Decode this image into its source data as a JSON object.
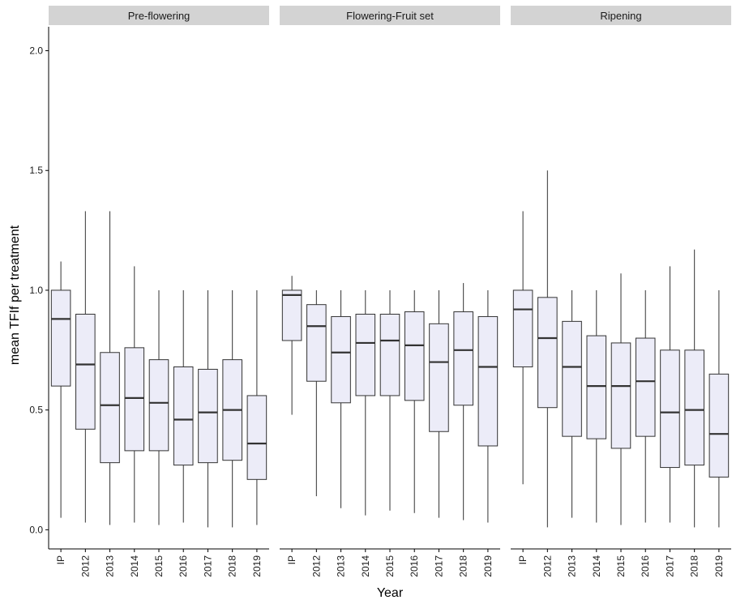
{
  "chart_data": {
    "type": "boxplot",
    "xlabel": "Year",
    "ylabel": "mean TFIf per treatment",
    "ylim": [
      -0.08,
      2.1
    ],
    "yticks": [
      0.0,
      0.5,
      1.0,
      1.5,
      2.0
    ],
    "ytick_labels": [
      "0.0",
      "0.5",
      "1.0",
      "1.5",
      "2.0"
    ],
    "categories": [
      "IP",
      "2012",
      "2013",
      "2014",
      "2015",
      "2016",
      "2017",
      "2018",
      "2019"
    ],
    "grid": false,
    "box_color": "#ececf8",
    "panels": [
      {
        "name": "Pre-flowering",
        "boxes": [
          {
            "category": "IP",
            "min": 0.05,
            "q1": 0.6,
            "median": 0.88,
            "q3": 1.0,
            "max": 1.12
          },
          {
            "category": "2012",
            "min": 0.03,
            "q1": 0.42,
            "median": 0.69,
            "q3": 0.9,
            "max": 1.33
          },
          {
            "category": "2013",
            "min": 0.02,
            "q1": 0.28,
            "median": 0.52,
            "q3": 0.74,
            "max": 1.33
          },
          {
            "category": "2014",
            "min": 0.03,
            "q1": 0.33,
            "median": 0.55,
            "q3": 0.76,
            "max": 1.1
          },
          {
            "category": "2015",
            "min": 0.02,
            "q1": 0.33,
            "median": 0.53,
            "q3": 0.71,
            "max": 1.0
          },
          {
            "category": "2016",
            "min": 0.03,
            "q1": 0.27,
            "median": 0.46,
            "q3": 0.68,
            "max": 1.0
          },
          {
            "category": "2017",
            "min": 0.01,
            "q1": 0.28,
            "median": 0.49,
            "q3": 0.67,
            "max": 1.0
          },
          {
            "category": "2018",
            "min": 0.01,
            "q1": 0.29,
            "median": 0.5,
            "q3": 0.71,
            "max": 1.0
          },
          {
            "category": "2019",
            "min": 0.02,
            "q1": 0.21,
            "median": 0.36,
            "q3": 0.56,
            "max": 1.0
          }
        ]
      },
      {
        "name": "Flowering-Fruit set",
        "boxes": [
          {
            "category": "IP",
            "min": 0.48,
            "q1": 0.79,
            "median": 0.98,
            "q3": 1.0,
            "max": 1.06
          },
          {
            "category": "2012",
            "min": 0.14,
            "q1": 0.62,
            "median": 0.85,
            "q3": 0.94,
            "max": 1.0
          },
          {
            "category": "2013",
            "min": 0.09,
            "q1": 0.53,
            "median": 0.74,
            "q3": 0.89,
            "max": 1.0
          },
          {
            "category": "2014",
            "min": 0.06,
            "q1": 0.56,
            "median": 0.78,
            "q3": 0.9,
            "max": 1.0
          },
          {
            "category": "2015",
            "min": 0.08,
            "q1": 0.56,
            "median": 0.79,
            "q3": 0.9,
            "max": 1.0
          },
          {
            "category": "2016",
            "min": 0.07,
            "q1": 0.54,
            "median": 0.77,
            "q3": 0.91,
            "max": 1.0
          },
          {
            "category": "2017",
            "min": 0.05,
            "q1": 0.41,
            "median": 0.7,
            "q3": 0.86,
            "max": 1.0
          },
          {
            "category": "2018",
            "min": 0.04,
            "q1": 0.52,
            "median": 0.75,
            "q3": 0.91,
            "max": 1.03
          },
          {
            "category": "2019",
            "min": 0.03,
            "q1": 0.35,
            "median": 0.68,
            "q3": 0.89,
            "max": 1.0
          }
        ]
      },
      {
        "name": "Ripening",
        "boxes": [
          {
            "category": "IP",
            "min": 0.19,
            "q1": 0.68,
            "median": 0.92,
            "q3": 1.0,
            "max": 1.33
          },
          {
            "category": "2012",
            "min": 0.01,
            "q1": 0.51,
            "median": 0.8,
            "q3": 0.97,
            "max": 1.5
          },
          {
            "category": "2013",
            "min": 0.05,
            "q1": 0.39,
            "median": 0.68,
            "q3": 0.87,
            "max": 1.0
          },
          {
            "category": "2014",
            "min": 0.03,
            "q1": 0.38,
            "median": 0.6,
            "q3": 0.81,
            "max": 1.0
          },
          {
            "category": "2015",
            "min": 0.02,
            "q1": 0.34,
            "median": 0.6,
            "q3": 0.78,
            "max": 1.07
          },
          {
            "category": "2016",
            "min": 0.03,
            "q1": 0.39,
            "median": 0.62,
            "q3": 0.8,
            "max": 1.0
          },
          {
            "category": "2017",
            "min": 0.03,
            "q1": 0.26,
            "median": 0.49,
            "q3": 0.75,
            "max": 1.1
          },
          {
            "category": "2018",
            "min": 0.01,
            "q1": 0.27,
            "median": 0.5,
            "q3": 0.75,
            "max": 1.17
          },
          {
            "category": "2019",
            "min": 0.01,
            "q1": 0.22,
            "median": 0.4,
            "q3": 0.65,
            "max": 1.0
          }
        ]
      }
    ]
  }
}
